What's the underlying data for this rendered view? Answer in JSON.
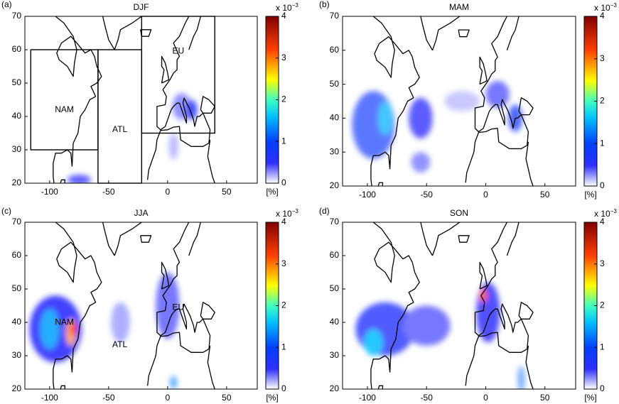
{
  "panels": [
    {
      "label": "(a)",
      "title": "DJF",
      "xlim": [
        -121,
        76
      ],
      "ylim": [
        20,
        70
      ],
      "xticks": [
        -100,
        -50,
        0,
        50
      ],
      "yticks": [
        20,
        30,
        40,
        50,
        60,
        70
      ],
      "colorbar": {
        "lim": [
          0,
          4
        ],
        "ticks": [
          0,
          1,
          2,
          3,
          4
        ],
        "exponent": "x 10",
        "exponent_power": "−3",
        "unit": "[%]"
      },
      "regions": [
        {
          "name": "NAM",
          "lon": [
            -116,
            -59
          ],
          "lat": [
            30,
            60
          ]
        },
        {
          "name": "ATL",
          "lon": [
            -59,
            -22
          ],
          "lat": [
            20,
            60
          ]
        },
        {
          "name": "EU",
          "lon": [
            -22,
            40
          ],
          "lat": [
            35,
            70
          ]
        }
      ]
    },
    {
      "label": "(b)",
      "title": "MAM",
      "xlim": [
        -121,
        76
      ],
      "ylim": [
        20,
        70
      ],
      "xticks": [
        -100,
        -50,
        0,
        50
      ],
      "yticks": [
        20,
        30,
        40,
        50,
        60,
        70
      ],
      "colorbar": {
        "lim": [
          0,
          4
        ],
        "ticks": [
          0,
          1,
          2,
          3,
          4
        ],
        "exponent": "x 10",
        "exponent_power": "−3",
        "unit": "[%]"
      }
    },
    {
      "label": "(c)",
      "title": "JJA",
      "xlim": [
        -121,
        76
      ],
      "ylim": [
        20,
        70
      ],
      "xticks": [
        -100,
        -50,
        0,
        50
      ],
      "yticks": [
        20,
        30,
        40,
        50,
        60,
        70
      ],
      "colorbar": {
        "lim": [
          0,
          4
        ],
        "ticks": [
          0,
          1,
          2,
          3,
          4
        ],
        "exponent": "x 10",
        "exponent_power": "−3",
        "unit": "[%]"
      },
      "region_labels": [
        "NAM",
        "ATL",
        "EU"
      ]
    },
    {
      "label": "(d)",
      "title": "SON",
      "xlim": [
        -121,
        76
      ],
      "ylim": [
        20,
        70
      ],
      "xticks": [
        -100,
        -50,
        0,
        50
      ],
      "yticks": [
        20,
        30,
        40,
        50,
        60,
        70
      ],
      "colorbar": {
        "lim": [
          0,
          4
        ],
        "ticks": [
          0,
          1,
          2,
          3,
          4
        ],
        "exponent": "x 10",
        "exponent_power": "−3",
        "unit": "[%]"
      }
    }
  ]
}
